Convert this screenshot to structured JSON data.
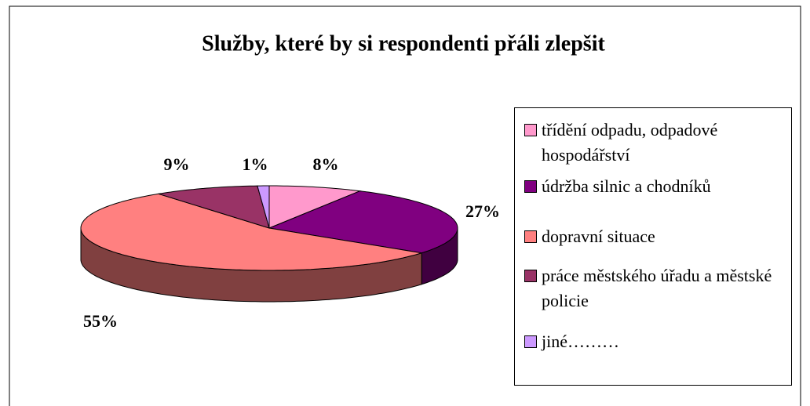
{
  "chart_data": {
    "type": "pie",
    "title": "Služby, které by si respondenti přáli zlepšit",
    "categories": [
      "třídění odpadu, odpadové hospodářství",
      "údržba silnic a chodníků",
      "dopravní situace",
      "práce městského úřadu a městské policie",
      "jiné………"
    ],
    "values": [
      8,
      27,
      55,
      9,
      1
    ],
    "value_labels": [
      "8%",
      "27%",
      "55%",
      "9%",
      "1%"
    ],
    "colors": [
      "#ff99cc",
      "#800080",
      "#ff8080",
      "#993366",
      "#cc99ff"
    ],
    "legend": "right"
  }
}
